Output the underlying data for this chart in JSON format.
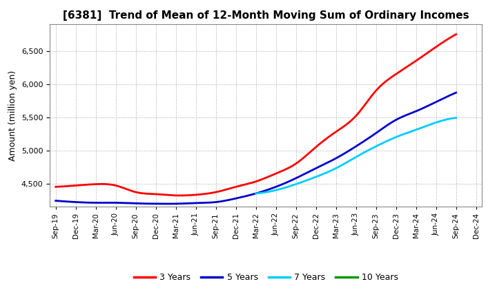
{
  "title": "[6381]  Trend of Mean of 12-Month Moving Sum of Ordinary Incomes",
  "ylabel": "Amount (million yen)",
  "background_color": "#ffffff",
  "plot_bg_color": "#ffffff",
  "grid_color": "#999999",
  "ylim": [
    4150,
    6900
  ],
  "yticks": [
    4500,
    5000,
    5500,
    6000,
    6500
  ],
  "series": {
    "3 Years": {
      "color": "#ff0000",
      "data": {
        "Sep-19": 4450,
        "Dec-19": 4470,
        "Mar-20": 4490,
        "Jun-20": 4470,
        "Sep-20": 4370,
        "Dec-20": 4340,
        "Mar-21": 4320,
        "Jun-21": 4330,
        "Sep-21": 4370,
        "Dec-21": 4450,
        "Mar-22": 4530,
        "Jun-22": 4650,
        "Sep-22": 4800,
        "Dec-22": 5050,
        "Mar-23": 5280,
        "Jun-23": 5520,
        "Sep-23": 5900,
        "Dec-23": 6150,
        "Mar-24": 6350,
        "Jun-24": 6560,
        "Sep-24": 6750
      }
    },
    "5 Years": {
      "color": "#0000cc",
      "data": {
        "Sep-19": 4240,
        "Dec-19": 4220,
        "Mar-20": 4210,
        "Jun-20": 4210,
        "Sep-20": 4200,
        "Dec-20": 4195,
        "Mar-21": 4195,
        "Jun-21": 4205,
        "Sep-21": 4220,
        "Dec-21": 4275,
        "Mar-22": 4350,
        "Jun-22": 4450,
        "Sep-22": 4580,
        "Dec-22": 4730,
        "Mar-23": 4880,
        "Jun-23": 5060,
        "Sep-23": 5260,
        "Dec-23": 5460,
        "Mar-24": 5590,
        "Jun-24": 5730,
        "Sep-24": 5870
      }
    },
    "7 Years": {
      "color": "#00ccff",
      "data": {
        "Mar-22": 4350,
        "Jun-22": 4400,
        "Sep-22": 4490,
        "Dec-22": 4600,
        "Mar-23": 4730,
        "Jun-23": 4900,
        "Sep-23": 5060,
        "Dec-23": 5200,
        "Mar-24": 5310,
        "Jun-24": 5420,
        "Sep-24": 5490
      }
    },
    "10 Years": {
      "color": "#009900",
      "data": {}
    }
  },
  "x_tick_labels": [
    "Sep-19",
    "Dec-19",
    "Mar-20",
    "Jun-20",
    "Sep-20",
    "Dec-20",
    "Mar-21",
    "Jun-21",
    "Sep-21",
    "Dec-21",
    "Mar-22",
    "Jun-22",
    "Sep-22",
    "Dec-22",
    "Mar-23",
    "Jun-23",
    "Sep-23",
    "Dec-23",
    "Mar-24",
    "Jun-24",
    "Sep-24",
    "Dec-24"
  ],
  "legend_entries": [
    "3 Years",
    "5 Years",
    "7 Years",
    "10 Years"
  ],
  "legend_colors": [
    "#ff0000",
    "#0000cc",
    "#00ccff",
    "#009900"
  ],
  "title_fontsize": 11,
  "ylabel_fontsize": 9,
  "tick_fontsize": 8,
  "legend_fontsize": 9
}
